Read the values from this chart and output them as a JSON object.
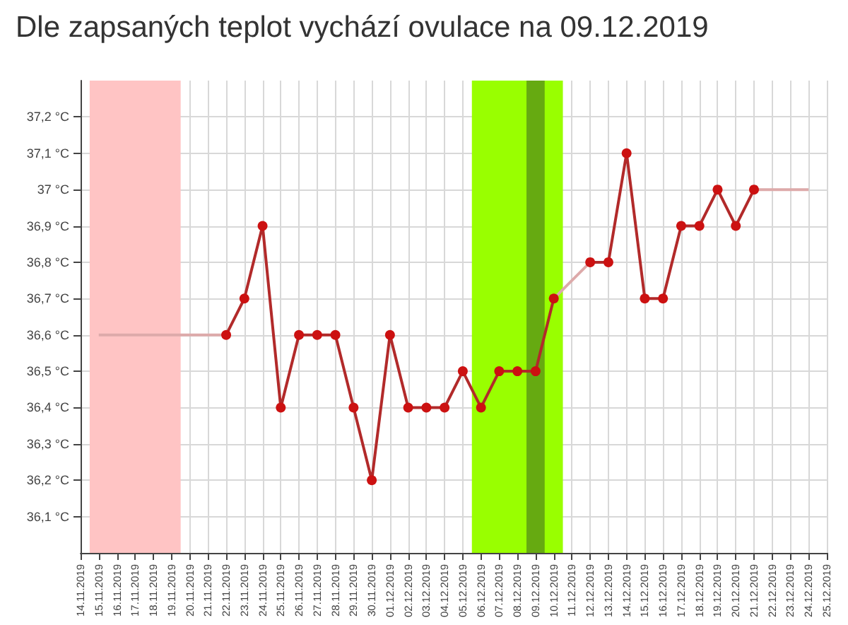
{
  "chart_data": {
    "type": "line",
    "title": "Dle zapsaných teplot vychází ovulace na 09.12.2019",
    "xlim": [
      "2019-11-14",
      "2019-12-25"
    ],
    "xticks": [
      {
        "value": "2019-11-14",
        "label": "14.11.2019"
      },
      {
        "value": "2019-11-15",
        "label": "15.11.2019"
      },
      {
        "value": "2019-11-16",
        "label": "16.11.2019"
      },
      {
        "value": "2019-11-17",
        "label": "17.11.2019"
      },
      {
        "value": "2019-11-18",
        "label": "18.11.2019"
      },
      {
        "value": "2019-11-19",
        "label": "19.11.2019"
      },
      {
        "value": "2019-11-20",
        "label": "20.11.2019"
      },
      {
        "value": "2019-11-21",
        "label": "21.11.2019"
      },
      {
        "value": "2019-11-22",
        "label": "22.11.2019"
      },
      {
        "value": "2019-11-23",
        "label": "23.11.2019"
      },
      {
        "value": "2019-11-24",
        "label": "24.11.2019"
      },
      {
        "value": "2019-11-25",
        "label": "25.11.2019"
      },
      {
        "value": "2019-11-26",
        "label": "26.11.2019"
      },
      {
        "value": "2019-11-27",
        "label": "27.11.2019"
      },
      {
        "value": "2019-11-28",
        "label": "28.11.2019"
      },
      {
        "value": "2019-11-29",
        "label": "29.11.2019"
      },
      {
        "value": "2019-11-30",
        "label": "30.11.2019"
      },
      {
        "value": "2019-12-01",
        "label": "01.12.2019"
      },
      {
        "value": "2019-12-02",
        "label": "02.12.2019"
      },
      {
        "value": "2019-12-03",
        "label": "03.12.2019"
      },
      {
        "value": "2019-12-04",
        "label": "04.12.2019"
      },
      {
        "value": "2019-12-05",
        "label": "05.12.2019"
      },
      {
        "value": "2019-12-06",
        "label": "06.12.2019"
      },
      {
        "value": "2019-12-07",
        "label": "07.12.2019"
      },
      {
        "value": "2019-12-08",
        "label": "08.12.2019"
      },
      {
        "value": "2019-12-09",
        "label": "09.12.2019"
      },
      {
        "value": "2019-12-10",
        "label": "10.12.2019"
      },
      {
        "value": "2019-12-11",
        "label": "11.12.2019"
      },
      {
        "value": "2019-12-12",
        "label": "12.12.2019"
      },
      {
        "value": "2019-12-13",
        "label": "13.12.2019"
      },
      {
        "value": "2019-12-14",
        "label": "14.12.2019"
      },
      {
        "value": "2019-12-15",
        "label": "15.12.2019"
      },
      {
        "value": "2019-12-16",
        "label": "16.12.2019"
      },
      {
        "value": "2019-12-17",
        "label": "17.12.2019"
      },
      {
        "value": "2019-12-18",
        "label": "18.12.2019"
      },
      {
        "value": "2019-12-19",
        "label": "19.12.2019"
      },
      {
        "value": "2019-12-20",
        "label": "20.12.2019"
      },
      {
        "value": "2019-12-21",
        "label": "21.12.2019"
      },
      {
        "value": "2019-12-22",
        "label": "22.12.2019"
      },
      {
        "value": "2019-12-23",
        "label": "23.12.2019"
      },
      {
        "value": "2019-12-24",
        "label": "24.12.2019"
      },
      {
        "value": "2019-12-25",
        "label": "25.12.2019"
      }
    ],
    "ylim": [
      36.0,
      37.3
    ],
    "yticks": [
      {
        "value": 36.1,
        "label": "36,1 °C"
      },
      {
        "value": 36.2,
        "label": "36,2 °C"
      },
      {
        "value": 36.3,
        "label": "36,3 °C"
      },
      {
        "value": 36.4,
        "label": "36,4 °C"
      },
      {
        "value": 36.5,
        "label": "36,5 °C"
      },
      {
        "value": 36.6,
        "label": "36,6 °C"
      },
      {
        "value": 36.7,
        "label": "36,7 °C"
      },
      {
        "value": 36.8,
        "label": "36,8 °C"
      },
      {
        "value": 36.9,
        "label": "36,9 °C"
      },
      {
        "value": 37.0,
        "label": "37 °C"
      },
      {
        "value": 37.1,
        "label": "37,1 °C"
      },
      {
        "value": 37.2,
        "label": "37,2 °C"
      }
    ],
    "grid": true,
    "bands": [
      {
        "axis": "x",
        "from": "2019-11-14T12:00",
        "to": "2019-11-19T12:00",
        "color": "#ffc4c4"
      },
      {
        "axis": "x",
        "from": "2019-12-05T12:00",
        "to": "2019-12-10T12:00",
        "color": "#99ff00"
      },
      {
        "axis": "x",
        "from": "2019-12-08T12:00",
        "to": "2019-12-09T12:00",
        "color": "#66aa11"
      }
    ],
    "series": [
      {
        "color": "#ddaaaa",
        "x": [
          "2019-11-15",
          "2019-11-22",
          "2019-11-23",
          "2019-12-10",
          "2019-12-12",
          "2019-12-13",
          "2019-12-21",
          "2019-12-24"
        ],
        "values": [
          36.6,
          36.6,
          null,
          36.7,
          36.8,
          null,
          37.0,
          37.0
        ]
      },
      {
        "color": "#b22a2a",
        "marker": "circle",
        "x": [
          "2019-11-22",
          "2019-11-23",
          "2019-11-24",
          "2019-11-25",
          "2019-11-26",
          "2019-11-27",
          "2019-11-28",
          "2019-11-29",
          "2019-11-30",
          "2019-12-01",
          "2019-12-02",
          "2019-12-03",
          "2019-12-04",
          "2019-12-05",
          "2019-12-06",
          "2019-12-07",
          "2019-12-08",
          "2019-12-09",
          "2019-12-10",
          "2019-12-11",
          "2019-12-12",
          "2019-12-13",
          "2019-12-14",
          "2019-12-15",
          "2019-12-16",
          "2019-12-17",
          "2019-12-18",
          "2019-12-19",
          "2019-12-20",
          "2019-12-21"
        ],
        "values": [
          36.6,
          36.7,
          36.9,
          36.4,
          36.6,
          36.6,
          36.6,
          36.4,
          36.2,
          36.6,
          36.4,
          36.4,
          36.4,
          36.5,
          36.4,
          36.5,
          36.5,
          36.5,
          36.7,
          null,
          36.8,
          36.8,
          37.1,
          36.7,
          36.7,
          36.9,
          36.9,
          37.0,
          36.9,
          37.0
        ]
      }
    ]
  }
}
